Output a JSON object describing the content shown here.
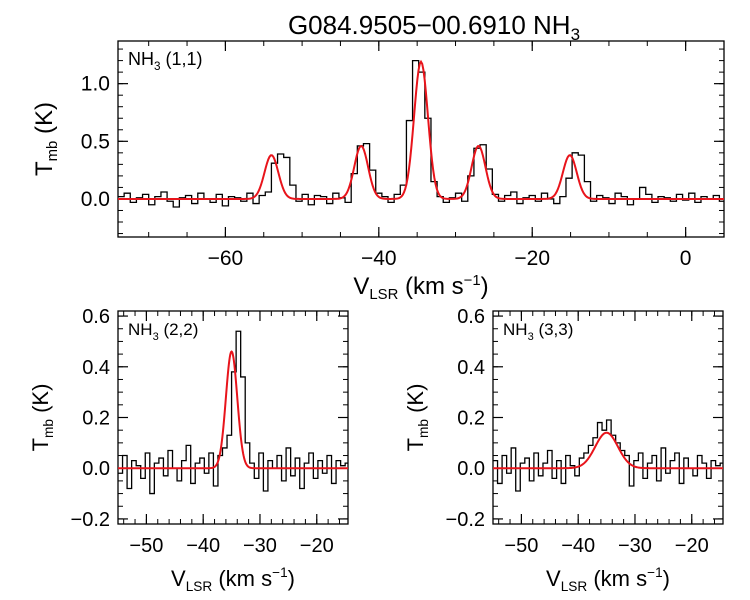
{
  "title": {
    "main": "G084.9505−00.6910 NH",
    "sub": "3"
  },
  "colors": {
    "data": "#000000",
    "fit": "#e8141b",
    "axis": "#000000"
  },
  "chart_data": [
    {
      "type": "line",
      "id": "top",
      "panel_label": {
        "main": "NH",
        "sub": "3",
        "rest": " (1,1)"
      },
      "xlabel": {
        "main": "V",
        "sub": "LSR",
        "rest": " (km s",
        "sup": "−1",
        "end": ")"
      },
      "ylabel": {
        "main": "T",
        "sub": "mb",
        "rest": " (K)"
      },
      "xlim": [
        -74,
        5
      ],
      "ylim": [
        -0.33,
        1.37
      ],
      "xticks": [
        -60,
        -40,
        -20,
        0
      ],
      "xtick_labels": [
        "−60",
        "−40",
        "−20",
        "0"
      ],
      "yticks": [
        0.0,
        0.5,
        1.0
      ],
      "ytick_labels": [
        "0.0",
        "0.5",
        "1.0"
      ],
      "xminor": 5,
      "yminor": 0.1,
      "series": [
        {
          "kind": "fit",
          "components": [
            {
              "center": -54.0,
              "amp": 0.38,
              "sigma": 0.9
            },
            {
              "center": -42.3,
              "amp": 0.46,
              "sigma": 0.9
            },
            {
              "center": -34.5,
              "amp": 1.19,
              "sigma": 0.9
            },
            {
              "center": -27.0,
              "amp": 0.46,
              "sigma": 0.9
            },
            {
              "center": -15.1,
              "amp": 0.38,
              "sigma": 0.9
            }
          ]
        },
        {
          "kind": "data",
          "x_start": -74,
          "x_step": 0.8,
          "y": [
            0.02,
            0.05,
            -0.03,
            0.01,
            0.04,
            -0.05,
            0.02,
            0.06,
            -0.02,
            -0.07,
            0.01,
            0.03,
            -0.04,
            0.05,
            0.0,
            -0.03,
            0.04,
            -0.06,
            0.02,
            0.01,
            -0.02,
            0.05,
            -0.04,
            0.03,
            0.06,
            0.31,
            0.39,
            0.36,
            0.12,
            -0.02,
            0.04,
            -0.05,
            0.03,
            0.02,
            -0.04,
            0.05,
            0.01,
            -0.03,
            0.22,
            0.46,
            0.48,
            0.25,
            0.05,
            0.02,
            -0.03,
            0.04,
            0.12,
            0.68,
            1.2,
            1.1,
            0.7,
            0.15,
            0.02,
            -0.03,
            0.01,
            0.05,
            -0.02,
            0.2,
            0.44,
            0.47,
            0.26,
            0.04,
            -0.02,
            0.03,
            0.06,
            -0.04,
            0.01,
            0.03,
            -0.02,
            0.05,
            0.0,
            -0.04,
            0.02,
            0.18,
            0.4,
            0.38,
            0.15,
            -0.02,
            0.03,
            0.01,
            -0.04,
            0.05,
            0.02,
            -0.05,
            0.0,
            0.1,
            0.04,
            -0.03,
            0.02,
            0.01,
            -0.02,
            0.04,
            -0.01,
            0.05,
            -0.03,
            0.02,
            0.0,
            0.03,
            -0.02,
            0.01
          ]
        }
      ]
    },
    {
      "type": "line",
      "id": "bottom-left",
      "panel_label": {
        "main": "NH",
        "sub": "3",
        "rest": " (2,2)"
      },
      "xlabel": {
        "main": "V",
        "sub": "LSR",
        "rest": " (km s",
        "sup": "−1",
        "end": ")"
      },
      "ylabel": {
        "main": "T",
        "sub": "mb",
        "rest": " (K)"
      },
      "xlim": [
        -55,
        -14.5
      ],
      "ylim": [
        -0.22,
        0.62
      ],
      "xticks": [
        -50,
        -40,
        -30,
        -20
      ],
      "xtick_labels": [
        "−50",
        "−40",
        "−30",
        "−20"
      ],
      "yticks": [
        -0.2,
        0.0,
        0.2,
        0.4,
        0.6
      ],
      "ytick_labels": [
        "−0.2",
        "0.0",
        "0.2",
        "0.4",
        "0.6"
      ],
      "xminor": 2,
      "yminor": 0.05,
      "series": [
        {
          "kind": "fit",
          "components": [
            {
              "center": -35.0,
              "amp": 0.46,
              "sigma": 1.0
            }
          ]
        },
        {
          "kind": "data",
          "x_start": -55,
          "x_step": 0.8,
          "y": [
            -0.02,
            0.05,
            -0.08,
            0.03,
            0.01,
            -0.04,
            0.06,
            -0.1,
            0.02,
            0.04,
            -0.03,
            0.07,
            0.0,
            -0.05,
            0.03,
            0.09,
            -0.06,
            0.02,
            0.04,
            -0.02,
            0.06,
            -0.07,
            0.05,
            0.08,
            0.13,
            0.38,
            0.54,
            0.36,
            0.1,
            0.02,
            -0.04,
            0.06,
            -0.09,
            0.03,
            0.0,
            0.05,
            -0.05,
            0.08,
            -0.03,
            0.04,
            -0.08,
            0.02,
            0.06,
            -0.04,
            0.03,
            -0.02,
            0.05,
            -0.06,
            0.03,
            0.01,
            0.02
          ]
        }
      ]
    },
    {
      "type": "line",
      "id": "bottom-right",
      "panel_label": {
        "main": "NH",
        "sub": "3",
        "rest": " (3,3)"
      },
      "xlabel": {
        "main": "V",
        "sub": "LSR",
        "rest": " (km s",
        "sup": "−1",
        "end": ")"
      },
      "ylabel": {
        "main": "T",
        "sub": "mb",
        "rest": " (K)"
      },
      "xlim": [
        -55,
        -14.5
      ],
      "ylim": [
        -0.22,
        0.62
      ],
      "xticks": [
        -50,
        -40,
        -30,
        -20
      ],
      "xtick_labels": [
        "−50",
        "−40",
        "−30",
        "−20"
      ],
      "yticks": [
        -0.2,
        0.0,
        0.2,
        0.4,
        0.6
      ],
      "ytick_labels": [
        "−0.2",
        "0.0",
        "0.2",
        "0.4",
        "0.6"
      ],
      "xminor": 2,
      "yminor": 0.05,
      "series": [
        {
          "kind": "fit",
          "components": [
            {
              "center": -35.0,
              "amp": 0.14,
              "sigma": 2.0
            }
          ]
        },
        {
          "kind": "data",
          "x_start": -55,
          "x_step": 0.8,
          "y": [
            0.03,
            -0.06,
            0.05,
            -0.02,
            0.08,
            -0.09,
            0.02,
            0.04,
            -0.05,
            0.06,
            -0.03,
            0.02,
            0.07,
            -0.04,
            0.03,
            -0.06,
            0.05,
            0.01,
            -0.03,
            0.04,
            0.06,
            0.09,
            0.12,
            0.18,
            0.15,
            0.19,
            0.13,
            0.1,
            0.07,
            0.05,
            -0.07,
            0.03,
            0.06,
            -0.04,
            0.02,
            0.05,
            -0.05,
            0.08,
            -0.02,
            0.03,
            0.06,
            -0.06,
            0.04,
            0.0,
            -0.03,
            0.05,
            0.02,
            -0.04,
            0.03,
            0.01,
            0.02
          ]
        }
      ]
    }
  ]
}
